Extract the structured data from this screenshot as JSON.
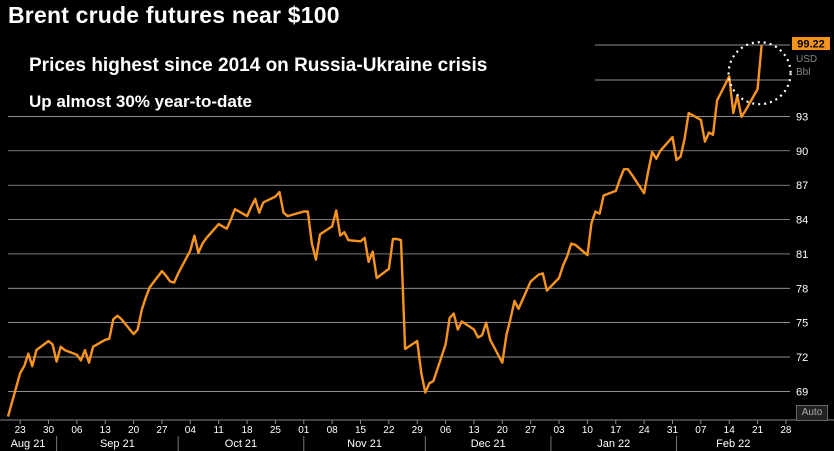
{
  "header": {
    "title": "Brent crude futures near $100",
    "subtitle_1": "Prices highest since 2014 on Russia-Ukraine crisis",
    "subtitle_2": "Up almost 30% year-to-date"
  },
  "controls": {
    "auto_label": "Auto"
  },
  "colors": {
    "line": "#f7941d",
    "grid": "#ffffff",
    "background": "#000000",
    "last_value_bg": "#f7941d"
  },
  "chart_data": {
    "type": "line",
    "title": "Brent crude futures near $100",
    "ylabel": "USD Bbl",
    "unit_labels": [
      "USD",
      "Bbl"
    ],
    "ylim": [
      66.5,
      100.2
    ],
    "y_ticks": [
      69,
      72,
      75,
      78,
      81,
      84,
      87,
      90,
      93
    ],
    "last_value": "99.22",
    "x_day_ticks": [
      "23",
      "30",
      "06",
      "13",
      "20",
      "27",
      "04",
      "11",
      "18",
      "25",
      "01",
      "08",
      "15",
      "22",
      "29",
      "06",
      "13",
      "20",
      "27",
      "03",
      "10",
      "17",
      "24",
      "31",
      "07",
      "14",
      "21",
      "28"
    ],
    "x_month_labels": [
      "Aug 21",
      "Sep 21",
      "Oct 21",
      "Nov 21",
      "Dec 21",
      "Jan 22",
      "Feb 22"
    ],
    "annotation": "dotted circle around latest price",
    "series": [
      {
        "values": [
          {
            "x": "2021-08-20",
            "y": 66.8
          },
          {
            "x": "2021-08-23",
            "y": 70.6
          },
          {
            "x": "2021-08-24",
            "y": 71.2
          },
          {
            "x": "2021-08-25",
            "y": 72.3
          },
          {
            "x": "2021-08-26",
            "y": 71.2
          },
          {
            "x": "2021-08-27",
            "y": 72.6
          },
          {
            "x": "2021-08-30",
            "y": 73.4
          },
          {
            "x": "2021-08-31",
            "y": 73.1
          },
          {
            "x": "2021-09-01",
            "y": 71.6
          },
          {
            "x": "2021-09-02",
            "y": 72.9
          },
          {
            "x": "2021-09-03",
            "y": 72.6
          },
          {
            "x": "2021-09-06",
            "y": 72.2
          },
          {
            "x": "2021-09-07",
            "y": 71.7
          },
          {
            "x": "2021-09-08",
            "y": 72.6
          },
          {
            "x": "2021-09-09",
            "y": 71.5
          },
          {
            "x": "2021-09-10",
            "y": 72.9
          },
          {
            "x": "2021-09-13",
            "y": 73.5
          },
          {
            "x": "2021-09-14",
            "y": 73.6
          },
          {
            "x": "2021-09-15",
            "y": 75.3
          },
          {
            "x": "2021-09-16",
            "y": 75.6
          },
          {
            "x": "2021-09-17",
            "y": 75.3
          },
          {
            "x": "2021-09-20",
            "y": 74.0
          },
          {
            "x": "2021-09-21",
            "y": 74.4
          },
          {
            "x": "2021-09-22",
            "y": 76.1
          },
          {
            "x": "2021-09-23",
            "y": 77.2
          },
          {
            "x": "2021-09-24",
            "y": 78.1
          },
          {
            "x": "2021-09-27",
            "y": 79.5
          },
          {
            "x": "2021-09-28",
            "y": 79.1
          },
          {
            "x": "2021-09-29",
            "y": 78.6
          },
          {
            "x": "2021-09-30",
            "y": 78.5
          },
          {
            "x": "2021-10-01",
            "y": 79.3
          },
          {
            "x": "2021-10-04",
            "y": 81.3
          },
          {
            "x": "2021-10-05",
            "y": 82.6
          },
          {
            "x": "2021-10-06",
            "y": 81.1
          },
          {
            "x": "2021-10-07",
            "y": 81.9
          },
          {
            "x": "2021-10-08",
            "y": 82.4
          },
          {
            "x": "2021-10-11",
            "y": 83.6
          },
          {
            "x": "2021-10-12",
            "y": 83.4
          },
          {
            "x": "2021-10-13",
            "y": 83.2
          },
          {
            "x": "2021-10-14",
            "y": 84.0
          },
          {
            "x": "2021-10-15",
            "y": 84.9
          },
          {
            "x": "2021-10-18",
            "y": 84.3
          },
          {
            "x": "2021-10-19",
            "y": 85.1
          },
          {
            "x": "2021-10-20",
            "y": 85.8
          },
          {
            "x": "2021-10-21",
            "y": 84.6
          },
          {
            "x": "2021-10-22",
            "y": 85.5
          },
          {
            "x": "2021-10-25",
            "y": 86.0
          },
          {
            "x": "2021-10-26",
            "y": 86.4
          },
          {
            "x": "2021-10-27",
            "y": 84.6
          },
          {
            "x": "2021-10-28",
            "y": 84.3
          },
          {
            "x": "2021-10-29",
            "y": 84.4
          },
          {
            "x": "2021-11-01",
            "y": 84.7
          },
          {
            "x": "2021-11-02",
            "y": 84.7
          },
          {
            "x": "2021-11-03",
            "y": 81.9
          },
          {
            "x": "2021-11-04",
            "y": 80.5
          },
          {
            "x": "2021-11-05",
            "y": 82.7
          },
          {
            "x": "2021-11-08",
            "y": 83.4
          },
          {
            "x": "2021-11-09",
            "y": 84.8
          },
          {
            "x": "2021-11-10",
            "y": 82.6
          },
          {
            "x": "2021-11-11",
            "y": 82.9
          },
          {
            "x": "2021-11-12",
            "y": 82.2
          },
          {
            "x": "2021-11-15",
            "y": 82.1
          },
          {
            "x": "2021-11-16",
            "y": 82.4
          },
          {
            "x": "2021-11-17",
            "y": 80.3
          },
          {
            "x": "2021-11-18",
            "y": 81.2
          },
          {
            "x": "2021-11-19",
            "y": 78.9
          },
          {
            "x": "2021-11-22",
            "y": 79.7
          },
          {
            "x": "2021-11-23",
            "y": 82.3
          },
          {
            "x": "2021-11-24",
            "y": 82.3
          },
          {
            "x": "2021-11-25",
            "y": 82.2
          },
          {
            "x": "2021-11-26",
            "y": 72.7
          },
          {
            "x": "2021-11-29",
            "y": 73.4
          },
          {
            "x": "2021-11-30",
            "y": 70.6
          },
          {
            "x": "2021-12-01",
            "y": 68.9
          },
          {
            "x": "2021-12-02",
            "y": 69.7
          },
          {
            "x": "2021-12-03",
            "y": 69.9
          },
          {
            "x": "2021-12-06",
            "y": 73.1
          },
          {
            "x": "2021-12-07",
            "y": 75.4
          },
          {
            "x": "2021-12-08",
            "y": 75.8
          },
          {
            "x": "2021-12-09",
            "y": 74.4
          },
          {
            "x": "2021-12-10",
            "y": 75.1
          },
          {
            "x": "2021-12-13",
            "y": 74.4
          },
          {
            "x": "2021-12-14",
            "y": 73.7
          },
          {
            "x": "2021-12-15",
            "y": 73.9
          },
          {
            "x": "2021-12-16",
            "y": 75.0
          },
          {
            "x": "2021-12-17",
            "y": 73.5
          },
          {
            "x": "2021-12-20",
            "y": 71.5
          },
          {
            "x": "2021-12-21",
            "y": 73.9
          },
          {
            "x": "2021-12-22",
            "y": 75.3
          },
          {
            "x": "2021-12-23",
            "y": 76.9
          },
          {
            "x": "2021-12-24",
            "y": 76.2
          },
          {
            "x": "2021-12-27",
            "y": 78.6
          },
          {
            "x": "2021-12-28",
            "y": 78.9
          },
          {
            "x": "2021-12-29",
            "y": 79.2
          },
          {
            "x": "2021-12-30",
            "y": 79.3
          },
          {
            "x": "2021-12-31",
            "y": 77.8
          },
          {
            "x": "2022-01-03",
            "y": 78.9
          },
          {
            "x": "2022-01-04",
            "y": 80.0
          },
          {
            "x": "2022-01-05",
            "y": 80.8
          },
          {
            "x": "2022-01-06",
            "y": 81.9
          },
          {
            "x": "2022-01-07",
            "y": 81.8
          },
          {
            "x": "2022-01-10",
            "y": 80.9
          },
          {
            "x": "2022-01-11",
            "y": 83.7
          },
          {
            "x": "2022-01-12",
            "y": 84.7
          },
          {
            "x": "2022-01-13",
            "y": 84.5
          },
          {
            "x": "2022-01-14",
            "y": 86.1
          },
          {
            "x": "2022-01-17",
            "y": 86.5
          },
          {
            "x": "2022-01-18",
            "y": 87.5
          },
          {
            "x": "2022-01-19",
            "y": 88.4
          },
          {
            "x": "2022-01-20",
            "y": 88.4
          },
          {
            "x": "2022-01-21",
            "y": 87.9
          },
          {
            "x": "2022-01-24",
            "y": 86.3
          },
          {
            "x": "2022-01-25",
            "y": 88.2
          },
          {
            "x": "2022-01-26",
            "y": 89.9
          },
          {
            "x": "2022-01-27",
            "y": 89.3
          },
          {
            "x": "2022-01-28",
            "y": 90.0
          },
          {
            "x": "2022-01-31",
            "y": 91.2
          },
          {
            "x": "2022-02-01",
            "y": 89.2
          },
          {
            "x": "2022-02-02",
            "y": 89.5
          },
          {
            "x": "2022-02-03",
            "y": 91.1
          },
          {
            "x": "2022-02-04",
            "y": 93.3
          },
          {
            "x": "2022-02-07",
            "y": 92.7
          },
          {
            "x": "2022-02-08",
            "y": 90.8
          },
          {
            "x": "2022-02-09",
            "y": 91.6
          },
          {
            "x": "2022-02-10",
            "y": 91.4
          },
          {
            "x": "2022-02-11",
            "y": 94.4
          },
          {
            "x": "2022-02-14",
            "y": 96.5
          },
          {
            "x": "2022-02-15",
            "y": 93.3
          },
          {
            "x": "2022-02-16",
            "y": 94.8
          },
          {
            "x": "2022-02-17",
            "y": 92.97
          },
          {
            "x": "2022-02-18",
            "y": 93.5
          },
          {
            "x": "2022-02-21",
            "y": 95.4
          },
          {
            "x": "2022-02-22",
            "y": 99.22
          }
        ]
      }
    ]
  }
}
